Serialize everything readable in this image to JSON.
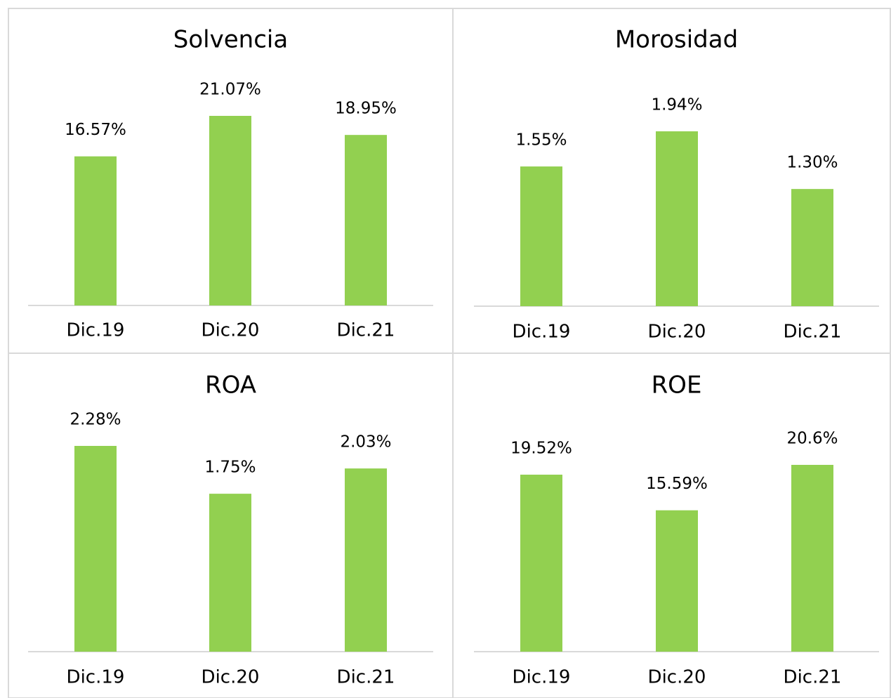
{
  "chart_data": [
    {
      "type": "bar",
      "title": "Solvencia",
      "categories": [
        "Dic.19",
        "Dic.20",
        "Dic.21"
      ],
      "values": [
        16.57,
        21.07,
        18.95
      ],
      "value_labels": [
        "16.57%",
        "21.07%",
        "18.95%"
      ],
      "color": "#92d050"
    },
    {
      "type": "bar",
      "title": "Morosidad",
      "categories": [
        "Dic.19",
        "Dic.20",
        "Dic.21"
      ],
      "values": [
        1.55,
        1.94,
        1.3
      ],
      "value_labels": [
        "1.55%",
        "1.94%",
        "1.30%"
      ],
      "color": "#92d050"
    },
    {
      "type": "bar",
      "title": "ROA",
      "categories": [
        "Dic.19",
        "Dic.20",
        "Dic.21"
      ],
      "values": [
        2.28,
        1.75,
        2.03
      ],
      "value_labels": [
        "2.28%",
        "1.75%",
        "2.03%"
      ],
      "color": "#92d050"
    },
    {
      "type": "bar",
      "title": "ROE",
      "categories": [
        "Dic.19",
        "Dic.20",
        "Dic.21"
      ],
      "values": [
        19.52,
        15.59,
        20.6
      ],
      "value_labels": [
        "19.52%",
        "15.59%",
        "20.6%"
      ],
      "color": "#92d050"
    }
  ]
}
